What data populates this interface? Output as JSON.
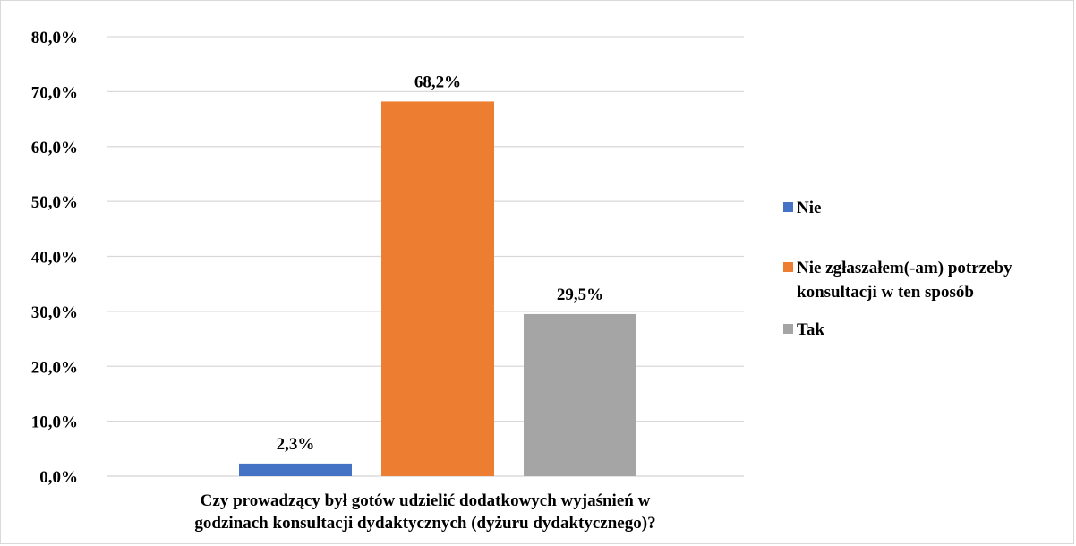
{
  "chart_data": {
    "type": "bar",
    "categories": [
      "Czy  prowadzący był gotów udzielić dodatkowych wyjaśnień w godzinach konsultacji dydaktycznych (dyżuru dydaktycznego)?"
    ],
    "category_label_lines": [
      "Czy  prowadzący był gotów udzielić dodatkowych wyjaśnień w",
      "godzinach konsultacji dydaktycznych (dyżuru dydaktycznego)?"
    ],
    "series": [
      {
        "name": "Nie",
        "values": [
          2.3
        ],
        "label": "2,3%",
        "color": "#4472c4",
        "legend_lines": [
          "Nie"
        ]
      },
      {
        "name": "Nie zgłaszałem(-am) potrzeby konsultacji w ten sposób",
        "values": [
          68.2
        ],
        "label": "68,2%",
        "color": "#ed7d31",
        "legend_lines": [
          "Nie zgłaszałem(-am) potrzeby",
          "konsultacji w ten sposób"
        ]
      },
      {
        "name": "Tak",
        "values": [
          29.5
        ],
        "label": "29,5%",
        "color": "#a5a5a5",
        "legend_lines": [
          "Tak"
        ]
      }
    ],
    "ylim": [
      0,
      80
    ],
    "yticks": [
      0,
      10,
      20,
      30,
      40,
      50,
      60,
      70,
      80
    ],
    "ytick_labels": [
      "0,0%",
      "10,0%",
      "20,0%",
      "30,0%",
      "40,0%",
      "50,0%",
      "60,0%",
      "70,0%",
      "80,0%"
    ],
    "grid": true,
    "legend_position": "right",
    "title": "",
    "xlabel": "",
    "ylabel": ""
  }
}
